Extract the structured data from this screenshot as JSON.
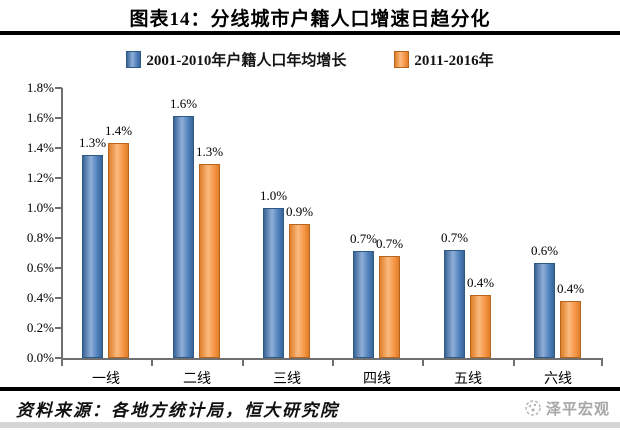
{
  "page": {
    "title": "图表14：分线城市户籍人口增速日趋分化",
    "footer": {
      "source_label": "资料来源：各地方统计局，恒大研究院",
      "watermark": "泽平宏观"
    }
  },
  "chart_data": {
    "type": "bar",
    "title": "图表14：分线城市户籍人口增速日趋分化",
    "categories": [
      "一线",
      "二线",
      "三线",
      "四线",
      "五线",
      "六线"
    ],
    "series": [
      {
        "name": "2001-2010年户籍人口年均增长",
        "color": "#4F81BD",
        "color_light": "#8FAFD7",
        "color_dark": "#3A6598",
        "border": "#2E5984",
        "values": [
          1.35,
          1.61,
          1.0,
          0.71,
          0.72,
          0.63
        ],
        "labels": [
          "1.3%",
          "1.6%",
          "1.0%",
          "0.7%",
          "0.7%",
          "0.6%"
        ]
      },
      {
        "name": "2011-2016年",
        "color": "#F79646",
        "color_light": "#FBBA80",
        "color_dark": "#DE7E28",
        "border": "#B5651D",
        "values": [
          1.43,
          1.29,
          0.89,
          0.68,
          0.42,
          0.38
        ],
        "labels": [
          "1.4%",
          "1.3%",
          "0.9%",
          "0.7%",
          "0.4%",
          "0.4%"
        ]
      }
    ],
    "xlabel": "",
    "ylabel": "",
    "ylim": [
      0,
      1.8
    ],
    "y_ticks": [
      "0.0%",
      "0.2%",
      "0.4%",
      "0.6%",
      "0.8%",
      "1.0%",
      "1.2%",
      "1.4%",
      "1.6%",
      "1.8%"
    ],
    "grid": false,
    "legend_position": "top",
    "axis_color": "#6f6f6f"
  }
}
